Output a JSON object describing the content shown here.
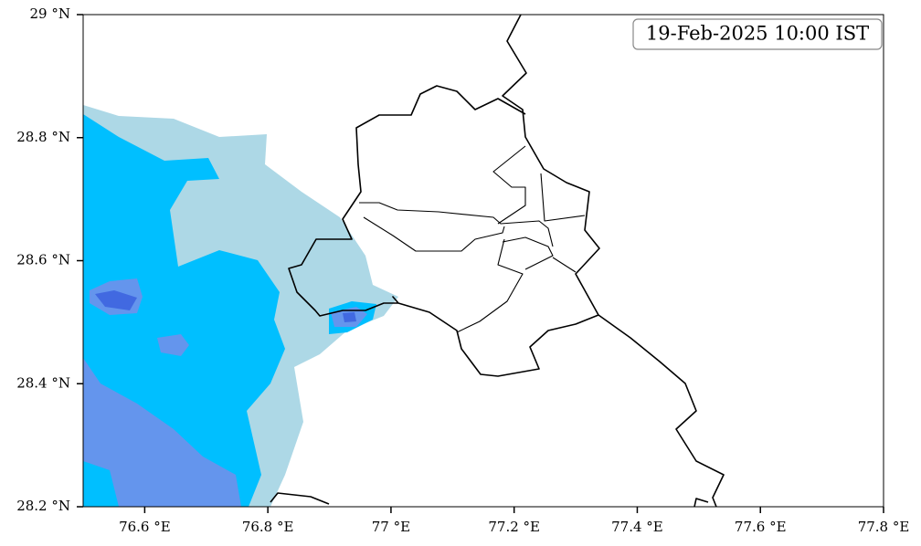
{
  "chart_data": {
    "type": "map",
    "title": "19-Feb-2025 10:00 IST",
    "xlim": [
      76.5,
      77.8
    ],
    "ylim": [
      28.2,
      29
    ],
    "xticks": [
      {
        "value": 76.6,
        "label": "76.6 °E"
      },
      {
        "value": 76.8,
        "label": "76.8 °E"
      },
      {
        "value": 77.0,
        "label": "77 °E"
      },
      {
        "value": 77.2,
        "label": "77.2 °E"
      },
      {
        "value": 77.4,
        "label": "77.4 °E"
      },
      {
        "value": 77.6,
        "label": "77.6 °E"
      },
      {
        "value": 77.8,
        "label": "77.8 °E"
      }
    ],
    "yticks": [
      {
        "value": 28.2,
        "label": "28.2 °N"
      },
      {
        "value": 28.4,
        "label": "28.4 °N"
      },
      {
        "value": 28.6,
        "label": "28.6 °N"
      },
      {
        "value": 28.8,
        "label": "28.8 °N"
      },
      {
        "value": 29,
        "label": "29 °N"
      }
    ]
  }
}
